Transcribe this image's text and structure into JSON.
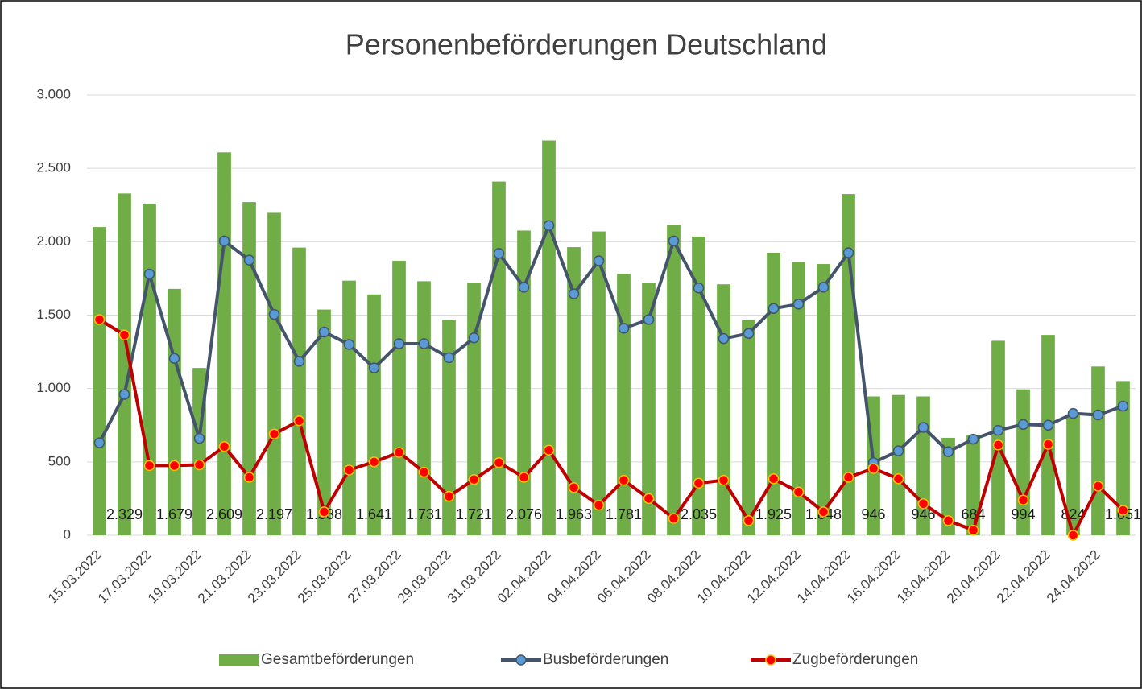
{
  "chart_data": {
    "type": "bar-line",
    "title": "Personenbeförderungen Deutschland",
    "categories": [
      "15.03.2022",
      null,
      "17.03.2022",
      null,
      "19.03.2022",
      null,
      "21.03.2022",
      null,
      "23.03.2022",
      null,
      "25.03.2022",
      null,
      "27.03.2022",
      null,
      "29.03.2022",
      null,
      "31.03.2022",
      null,
      "02.04.2022",
      null,
      "04.04.2022",
      null,
      "06.04.2022",
      null,
      "08.04.2022",
      null,
      "10.04.2022",
      null,
      "12.04.2022",
      null,
      "14.04.2022",
      null,
      "16.04.2022",
      null,
      "18.04.2022",
      null,
      "20.04.2022",
      null,
      "22.04.2022",
      null,
      "24.04.2022",
      null
    ],
    "series": [
      {
        "name": "Gesamtbeförderungen",
        "kind": "bar",
        "color": "#70ad47",
        "values": [
          2100,
          2329,
          2260,
          1679,
          1140,
          2609,
          2270,
          2197,
          1960,
          1538,
          1735,
          1641,
          1870,
          1731,
          1470,
          1721,
          2410,
          2076,
          2690,
          1963,
          2070,
          1781,
          1720,
          2115,
          2035,
          1710,
          1465,
          1925,
          1860,
          1848,
          2325,
          946,
          956,
          946,
          664,
          684,
          1325,
          994,
          1365,
          824,
          1150,
          1051
        ],
        "value_labels": [
          null,
          "2.329",
          null,
          "1.679",
          null,
          "2.609",
          null,
          "2.197",
          null,
          "1.538",
          null,
          "1.641",
          null,
          "1.731",
          null,
          "1.721",
          null,
          "2.076",
          null,
          "1.963",
          null,
          "1.781",
          null,
          null,
          "2.035",
          null,
          null,
          "1.925",
          null,
          "1.848",
          null,
          "946",
          null,
          "946",
          null,
          "684",
          null,
          "994",
          null,
          "824",
          null,
          "1.051"
        ]
      },
      {
        "name": "Busbeförderungen",
        "kind": "line",
        "color": "#44546a",
        "values": [
          630,
          960,
          1780,
          1205,
          660,
          2005,
          1875,
          1505,
          1185,
          1385,
          1300,
          1140,
          1305,
          1305,
          1210,
          1345,
          1920,
          1690,
          2110,
          1645,
          1870,
          1410,
          1470,
          2005,
          1685,
          1340,
          1375,
          1545,
          1575,
          1690,
          1925,
          495,
          575,
          735,
          570,
          655,
          715,
          755,
          750,
          830,
          820,
          880
        ]
      },
      {
        "name": "Zugbeförderungen",
        "kind": "line",
        "color": "#c00000",
        "values": [
          1470,
          1365,
          475,
          475,
          480,
          605,
          395,
          690,
          780,
          160,
          445,
          500,
          565,
          430,
          265,
          380,
          495,
          395,
          580,
          325,
          205,
          375,
          250,
          115,
          355,
          375,
          100,
          385,
          295,
          160,
          395,
          455,
          385,
          215,
          100,
          35,
          615,
          240,
          620,
          0,
          335,
          170
        ]
      }
    ],
    "ylim": [
      0,
      3000
    ],
    "yticks": [
      0,
      500,
      {
        "value": 1000,
        "label": "1.000"
      },
      {
        "value": 1500,
        "label": "1.500"
      },
      {
        "value": 2000,
        "label": "2.000"
      },
      {
        "value": 2500,
        "label": "2.500"
      },
      {
        "value": 3000,
        "label": "3.000"
      }
    ],
    "grid": true,
    "legend": "bottom"
  }
}
